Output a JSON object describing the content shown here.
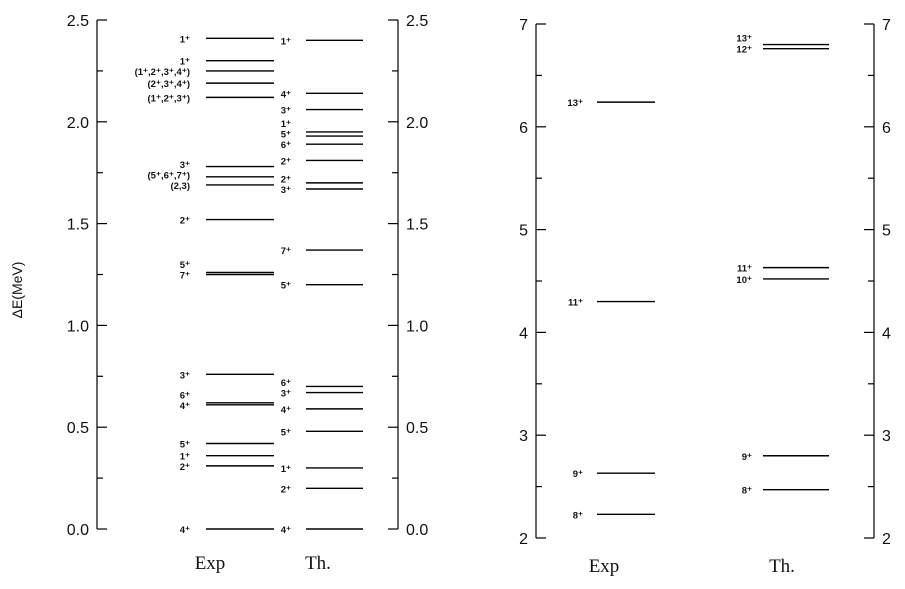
{
  "chart_data": [
    {
      "type": "level-scheme",
      "ylabel": "ΔE(MeV)",
      "ylim": [
        0.0,
        2.5
      ],
      "yticks": [
        "0.0",
        "0.5",
        "1.0",
        "1.5",
        "2.0",
        "2.5"
      ],
      "ytick_values": [
        0.0,
        0.5,
        1.0,
        1.5,
        2.0,
        2.5
      ],
      "columns": [
        {
          "label": "Exp",
          "levels": [
            {
              "label": "4⁺",
              "value": 0.0
            },
            {
              "label": "2⁺",
              "value": 0.31
            },
            {
              "label": "1⁺",
              "value": 0.36
            },
            {
              "label": "5⁺",
              "value": 0.42
            },
            {
              "label": "4⁺",
              "value": 0.61
            },
            {
              "label": "6⁺",
              "value": 0.62
            },
            {
              "label": "3⁺",
              "value": 0.76
            },
            {
              "label": "7⁺",
              "value": 1.25
            },
            {
              "label": "5⁺",
              "value": 1.26
            },
            {
              "label": "2⁺",
              "value": 1.52
            },
            {
              "label": "(2,3)",
              "value": 1.69
            },
            {
              "label": "(5⁺,6⁺,7⁺)",
              "value": 1.73
            },
            {
              "label": "3⁺",
              "value": 1.78
            },
            {
              "label": "(1⁺,2⁺,3⁺)",
              "value": 2.12
            },
            {
              "label": "(2⁺,3⁺,4⁺)",
              "value": 2.19
            },
            {
              "label": "(1⁺,2⁺,3⁺,4⁺)",
              "value": 2.25
            },
            {
              "label": "1⁺",
              "value": 2.3
            },
            {
              "label": "1⁺",
              "value": 2.41
            }
          ]
        },
        {
          "label": "Th.",
          "levels": [
            {
              "label": "4⁺",
              "value": 0.0
            },
            {
              "label": "2⁺",
              "value": 0.2
            },
            {
              "label": "1⁺",
              "value": 0.3
            },
            {
              "label": "5⁺",
              "value": 0.48
            },
            {
              "label": "4⁺",
              "value": 0.59
            },
            {
              "label": "3⁺",
              "value": 0.67
            },
            {
              "label": "6⁺",
              "value": 0.7
            },
            {
              "label": "5⁺",
              "value": 1.2
            },
            {
              "label": "7⁺",
              "value": 1.37
            },
            {
              "label": "3⁺",
              "value": 1.67
            },
            {
              "label": "2⁺",
              "value": 1.7
            },
            {
              "label": "2⁺",
              "value": 1.81
            },
            {
              "label": "6⁺",
              "value": 1.89
            },
            {
              "label": "5⁺",
              "value": 1.93
            },
            {
              "label": "1⁺",
              "value": 1.95
            },
            {
              "label": "3⁺",
              "value": 2.06
            },
            {
              "label": "4⁺",
              "value": 2.14
            },
            {
              "label": "1⁺",
              "value": 2.4
            }
          ]
        }
      ]
    },
    {
      "type": "level-scheme",
      "ylabel": "",
      "ylim": [
        2,
        7
      ],
      "yticks": [
        "2",
        "3",
        "4",
        "5",
        "6",
        "7"
      ],
      "ytick_values": [
        2,
        3,
        4,
        5,
        6,
        7
      ],
      "columns": [
        {
          "label": "Exp",
          "levels": [
            {
              "label": "8⁺",
              "value": 2.23
            },
            {
              "label": "9⁺",
              "value": 2.63
            },
            {
              "label": "11⁺",
              "value": 4.3
            },
            {
              "label": "13⁺",
              "value": 6.24
            }
          ]
        },
        {
          "label": "Th.",
          "levels": [
            {
              "label": "8⁺",
              "value": 2.47
            },
            {
              "label": "9⁺",
              "value": 2.8
            },
            {
              "label": "10⁺",
              "value": 4.52
            },
            {
              "label": "11⁺",
              "value": 4.63
            },
            {
              "label": "12⁺",
              "value": 6.76
            },
            {
              "label": "13⁺",
              "value": 6.8
            }
          ]
        }
      ]
    }
  ]
}
